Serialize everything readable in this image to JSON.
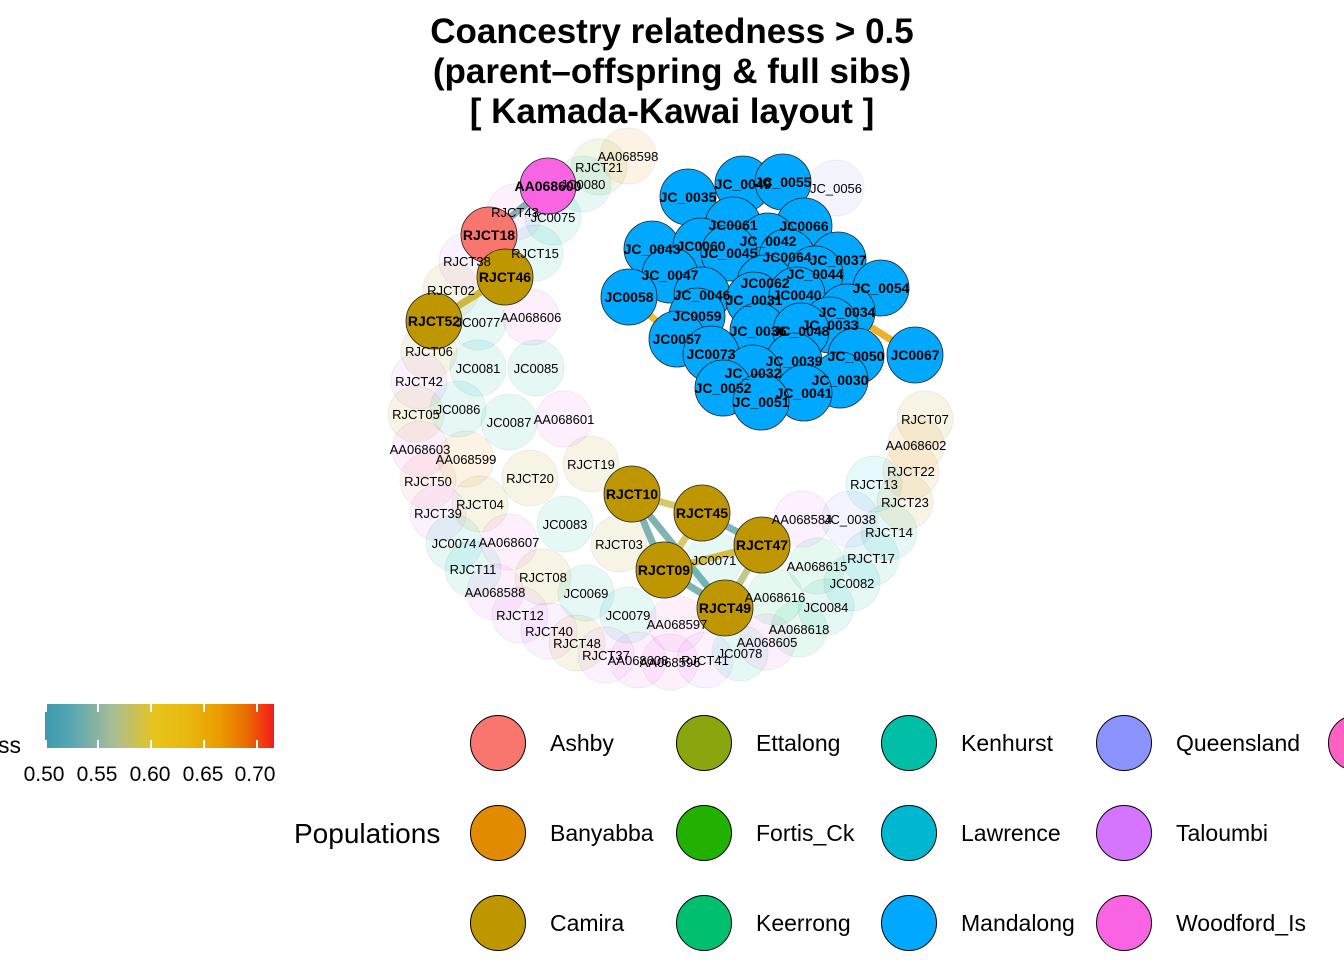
{
  "title": {
    "line1": "Coancestry relatedness > 0.5",
    "line2": "(parent–offspring & full sibs)",
    "line3": "[ Kamada-Kawai layout ]"
  },
  "colorbar": {
    "title": "ss",
    "ticks": [
      "0.50",
      "0.55",
      "0.60",
      "0.65",
      "0.70"
    ],
    "colors": [
      "#3b99b1",
      "#a9bd95",
      "#e7c41c",
      "#ea9d00",
      "#f5191c"
    ]
  },
  "populations": {
    "title": "Populations",
    "items": [
      {
        "name": "Ashby",
        "color": "#f8766d"
      },
      {
        "name": "Ettalong",
        "color": "#8aa60e"
      },
      {
        "name": "Kenhurst",
        "color": "#00bfa6"
      },
      {
        "name": "Queensland",
        "color": "#8b93ff"
      },
      {
        "name": "Banyabba",
        "color": "#e08b00"
      },
      {
        "name": "Fortis_Ck",
        "color": "#22b100"
      },
      {
        "name": "Lawrence",
        "color": "#00b7d2"
      },
      {
        "name": "Taloumbi",
        "color": "#d575fe"
      },
      {
        "name": "Camira",
        "color": "#bd9600"
      },
      {
        "name": "Keerrong",
        "color": "#00c070"
      },
      {
        "name": "Mandalong",
        "color": "#00a9ff"
      },
      {
        "name": "Woodford_Is",
        "color": "#f964e3"
      }
    ]
  },
  "chart_data": {
    "type": "network",
    "layout": "Kamada-Kawai",
    "nodes": [
      {
        "id": "JC_0035",
        "pop": "Mandalong",
        "highlight": true
      },
      {
        "id": "JC_0049",
        "pop": "Mandalong",
        "highlight": true
      },
      {
        "id": "JC_0055",
        "pop": "Mandalong",
        "highlight": true
      },
      {
        "id": "JC_0056",
        "pop": "Queensland",
        "highlight": false
      },
      {
        "id": "JC0061",
        "pop": "Mandalong",
        "highlight": true
      },
      {
        "id": "JC0066",
        "pop": "Mandalong",
        "highlight": true
      },
      {
        "id": "JC_0043",
        "pop": "Mandalong",
        "highlight": true
      },
      {
        "id": "JC0060",
        "pop": "Mandalong",
        "highlight": true
      },
      {
        "id": "JC_0042",
        "pop": "Mandalong",
        "highlight": true
      },
      {
        "id": "JC_0045",
        "pop": "Mandalong",
        "highlight": true
      },
      {
        "id": "JC0064",
        "pop": "Mandalong",
        "highlight": true
      },
      {
        "id": "JC_0037",
        "pop": "Mandalong",
        "highlight": true
      },
      {
        "id": "JC_0047",
        "pop": "Mandalong",
        "highlight": true
      },
      {
        "id": "JC0062",
        "pop": "Mandalong",
        "highlight": true
      },
      {
        "id": "JC_0044",
        "pop": "Mandalong",
        "highlight": true
      },
      {
        "id": "JC0058",
        "pop": "Mandalong",
        "highlight": true
      },
      {
        "id": "JC_0046",
        "pop": "Mandalong",
        "highlight": true
      },
      {
        "id": "JC_0031",
        "pop": "Mandalong",
        "highlight": true
      },
      {
        "id": "JC0040",
        "pop": "Mandalong",
        "highlight": true
      },
      {
        "id": "JC_0054",
        "pop": "Mandalong",
        "highlight": true
      },
      {
        "id": "JC0059",
        "pop": "Mandalong",
        "highlight": true
      },
      {
        "id": "JC_0034",
        "pop": "Mandalong",
        "highlight": true
      },
      {
        "id": "JC_0033",
        "pop": "Mandalong",
        "highlight": true
      },
      {
        "id": "JC_0036",
        "pop": "Mandalong",
        "highlight": true
      },
      {
        "id": "JC_0048",
        "pop": "Mandalong",
        "highlight": true
      },
      {
        "id": "JC0057",
        "pop": "Mandalong",
        "highlight": true
      },
      {
        "id": "JC0073",
        "pop": "Mandalong",
        "highlight": true
      },
      {
        "id": "JC_0039",
        "pop": "Mandalong",
        "highlight": true
      },
      {
        "id": "JC_0050",
        "pop": "Mandalong",
        "highlight": true
      },
      {
        "id": "JC0067",
        "pop": "Mandalong",
        "highlight": true
      },
      {
        "id": "JC_0032",
        "pop": "Mandalong",
        "highlight": true
      },
      {
        "id": "JC_0030",
        "pop": "Mandalong",
        "highlight": true
      },
      {
        "id": "JC_0052",
        "pop": "Mandalong",
        "highlight": true
      },
      {
        "id": "JC_0041",
        "pop": "Mandalong",
        "highlight": true
      },
      {
        "id": "JC_0051",
        "pop": "Mandalong",
        "highlight": true
      },
      {
        "id": "AA068598",
        "pop": "Banyabba",
        "highlight": false
      },
      {
        "id": "RJCT21",
        "pop": "Ettalong",
        "highlight": false
      },
      {
        "id": "AA068600",
        "pop": "Woodford_Is",
        "highlight": true
      },
      {
        "id": "JC0080",
        "pop": "Kenhurst",
        "highlight": false
      },
      {
        "id": "RJCT43",
        "pop": "Taloumbi",
        "highlight": false
      },
      {
        "id": "JC0075",
        "pop": "Kenhurst",
        "highlight": false
      },
      {
        "id": "RJCT18",
        "pop": "Ashby",
        "highlight": true
      },
      {
        "id": "RJCT15",
        "pop": "Kenhurst",
        "highlight": false
      },
      {
        "id": "RJCT38",
        "pop": "Taloumbi",
        "highlight": false
      },
      {
        "id": "RJCT46",
        "pop": "Camira",
        "highlight": true
      },
      {
        "id": "RJCT02",
        "pop": "Camira",
        "highlight": false
      },
      {
        "id": "RJCT52",
        "pop": "Camira",
        "highlight": true
      },
      {
        "id": "JC0077",
        "pop": "Kenhurst",
        "highlight": false
      },
      {
        "id": "AA068606",
        "pop": "Woodford_Is",
        "highlight": false
      },
      {
        "id": "RJCT06",
        "pop": "Camira",
        "highlight": false
      },
      {
        "id": "JC0081",
        "pop": "Kenhurst",
        "highlight": false
      },
      {
        "id": "JC0085",
        "pop": "Kenhurst",
        "highlight": false
      },
      {
        "id": "RJCT42",
        "pop": "Taloumbi",
        "highlight": false
      },
      {
        "id": "JC0086",
        "pop": "Kenhurst",
        "highlight": false
      },
      {
        "id": "RJCT05",
        "pop": "Camira",
        "highlight": false
      },
      {
        "id": "JC0087",
        "pop": "Kenhurst",
        "highlight": false
      },
      {
        "id": "AA068601",
        "pop": "Woodford_Is",
        "highlight": false
      },
      {
        "id": "AA068603",
        "pop": "Woodford_Is",
        "highlight": false
      },
      {
        "id": "AA068599",
        "pop": "Banyabba",
        "highlight": false
      },
      {
        "id": "RJCT19",
        "pop": "Camira",
        "highlight": false
      },
      {
        "id": "RJCT50",
        "pop": "Ashby",
        "highlight": false
      },
      {
        "id": "RJCT20",
        "pop": "Camira",
        "highlight": false
      },
      {
        "id": "RJCT10",
        "pop": "Camira",
        "highlight": true
      },
      {
        "id": "RJCT04",
        "pop": "Camira",
        "highlight": false
      },
      {
        "id": "RJCT39",
        "pop": "Taloumbi",
        "highlight": false
      },
      {
        "id": "JC0083",
        "pop": "Kenhurst",
        "highlight": false
      },
      {
        "id": "RJCT45",
        "pop": "Camira",
        "highlight": true
      },
      {
        "id": "JC0074",
        "pop": "Kenhurst",
        "highlight": false
      },
      {
        "id": "AA068607",
        "pop": "Woodford_Is",
        "highlight": false
      },
      {
        "id": "RJCT03",
        "pop": "Camira",
        "highlight": false
      },
      {
        "id": "RJCT09",
        "pop": "Camira",
        "highlight": true
      },
      {
        "id": "JC0071",
        "pop": "Kenhurst",
        "highlight": false
      },
      {
        "id": "RJCT47",
        "pop": "Camira",
        "highlight": true
      },
      {
        "id": "RJCT11",
        "pop": "Kenhurst",
        "highlight": false
      },
      {
        "id": "RJCT08",
        "pop": "Camira",
        "highlight": false
      },
      {
        "id": "AA068588",
        "pop": "Woodford_Is",
        "highlight": false
      },
      {
        "id": "JC0069",
        "pop": "Kenhurst",
        "highlight": false
      },
      {
        "id": "RJCT49",
        "pop": "Camira",
        "highlight": true
      },
      {
        "id": "RJCT12",
        "pop": "Taloumbi",
        "highlight": false
      },
      {
        "id": "JC0079",
        "pop": "Kenhurst",
        "highlight": false
      },
      {
        "id": "AA068597",
        "pop": "Woodford_Is",
        "highlight": false
      },
      {
        "id": "RJCT40",
        "pop": "Taloumbi",
        "highlight": false
      },
      {
        "id": "RJCT48",
        "pop": "Camira",
        "highlight": false
      },
      {
        "id": "RJCT37",
        "pop": "Taloumbi",
        "highlight": false
      },
      {
        "id": "AA068608",
        "pop": "Woodford_Is",
        "highlight": false
      },
      {
        "id": "AA068596",
        "pop": "Woodford_Is",
        "highlight": false
      },
      {
        "id": "RJCT41",
        "pop": "Taloumbi",
        "highlight": false
      },
      {
        "id": "JC0078",
        "pop": "Kenhurst",
        "highlight": false
      },
      {
        "id": "AA068605",
        "pop": "Woodford_Is",
        "highlight": false
      },
      {
        "id": "AA068618",
        "pop": "Keerrong",
        "highlight": false
      },
      {
        "id": "JC0084",
        "pop": "Kenhurst",
        "highlight": false
      },
      {
        "id": "AA068616",
        "pop": "Keerrong",
        "highlight": false
      },
      {
        "id": "JC0082",
        "pop": "Kenhurst",
        "highlight": false
      },
      {
        "id": "AA068615",
        "pop": "Keerrong",
        "highlight": false
      },
      {
        "id": "RJCT17",
        "pop": "Kenhurst",
        "highlight": false
      },
      {
        "id": "AA068584",
        "pop": "Taloumbi",
        "highlight": false
      },
      {
        "id": "JC_0038",
        "pop": "Queensland",
        "highlight": false
      },
      {
        "id": "RJCT14",
        "pop": "Kenhurst",
        "highlight": false
      },
      {
        "id": "RJCT13",
        "pop": "Lawrence",
        "highlight": false
      },
      {
        "id": "RJCT23",
        "pop": "Camira",
        "highlight": false
      },
      {
        "id": "RJCT22",
        "pop": "Banyabba",
        "highlight": false
      },
      {
        "id": "AA068602",
        "pop": "Banyabba",
        "highlight": false
      },
      {
        "id": "RJCT07",
        "pop": "Camira",
        "highlight": false
      }
    ],
    "edges": [
      {
        "source": "AA068600",
        "target": "RJCT18",
        "value": 0.52
      },
      {
        "source": "RJCT18",
        "target": "RJCT46",
        "value": 0.6
      },
      {
        "source": "RJCT46",
        "target": "RJCT52",
        "value": 0.62
      },
      {
        "source": "JC0058",
        "target": "JC0057",
        "value": 0.62
      },
      {
        "source": "JC_0034",
        "target": "JC0067",
        "value": 0.64
      },
      {
        "source": "RJCT10",
        "target": "RJCT45",
        "value": 0.58
      },
      {
        "source": "RJCT10",
        "target": "RJCT09",
        "value": 0.52
      },
      {
        "source": "RJCT10",
        "target": "RJCT49",
        "value": 0.52
      },
      {
        "source": "RJCT45",
        "target": "RJCT47",
        "value": 0.52
      },
      {
        "source": "RJCT45",
        "target": "RJCT09",
        "value": 0.58
      },
      {
        "source": "RJCT47",
        "target": "RJCT09",
        "value": 0.62
      },
      {
        "source": "RJCT47",
        "target": "RJCT49",
        "value": 0.56
      },
      {
        "source": "RJCT09",
        "target": "RJCT49",
        "value": 0.52
      }
    ]
  }
}
